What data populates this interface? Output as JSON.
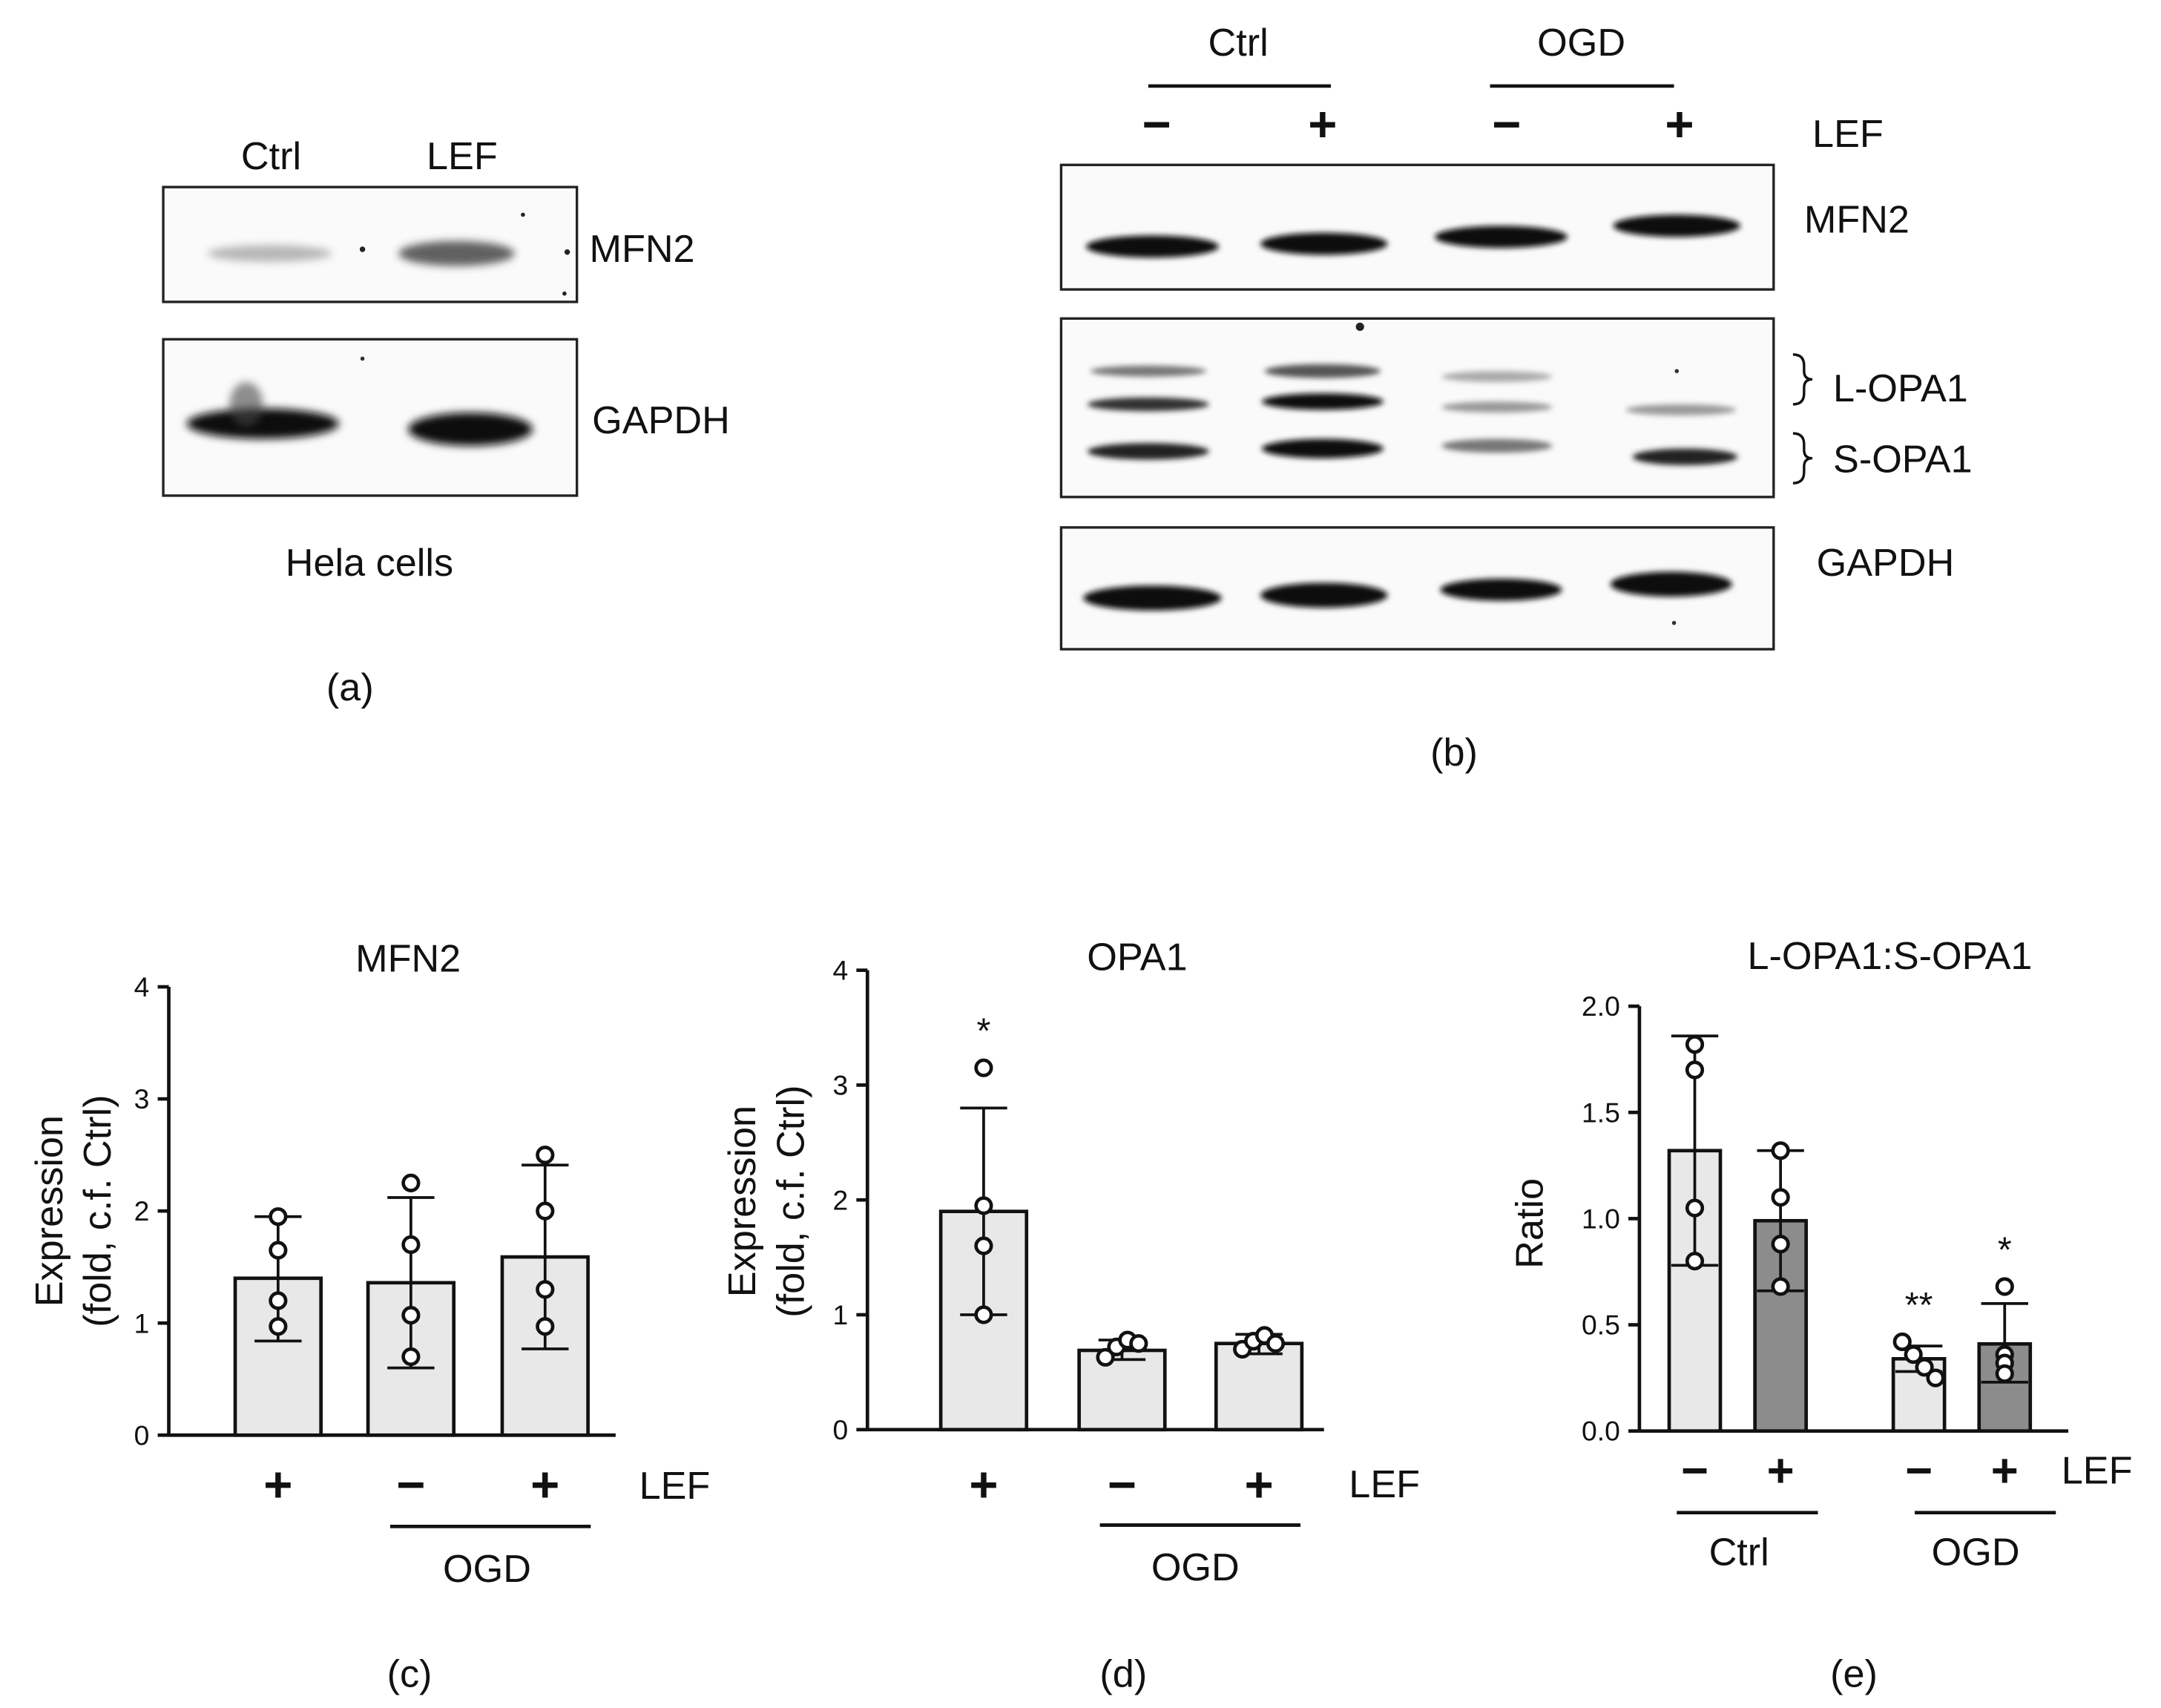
{
  "panel_a": {
    "lanes": [
      "Ctrl",
      "LEF"
    ],
    "blots": [
      "MFN2",
      "GAPDH"
    ],
    "caption": "Hela cells",
    "label": "(a)"
  },
  "panel_b": {
    "groups": [
      "Ctrl",
      "OGD"
    ],
    "treatment": [
      "−",
      "+",
      "−",
      "+"
    ],
    "treatment_name": "LEF",
    "blots": [
      "MFN2",
      "L-OPA1",
      "S-OPA1",
      "GAPDH"
    ],
    "label": "(b)"
  },
  "chart_data": [
    {
      "type": "bar",
      "title": "MFN2",
      "ylabel": "Expression (fold, c.f. Ctrl)",
      "ylabel_lines": [
        "Expression",
        "(fold, c.f. Ctrl)"
      ],
      "ylim": [
        0,
        4
      ],
      "yticks": [
        "0",
        "1",
        "2",
        "3",
        "4"
      ],
      "categories": [
        "+",
        "−",
        "+"
      ],
      "treatment_name": "LEF",
      "group_label": "OGD",
      "values": [
        1.4,
        1.36,
        1.59
      ],
      "error": [
        [
          0.84,
          1.95
        ],
        [
          0.6,
          2.12
        ],
        [
          0.77,
          2.41
        ]
      ],
      "points": [
        [
          1.95,
          1.65,
          1.2,
          0.97
        ],
        [
          2.25,
          1.7,
          1.07,
          0.7
        ],
        [
          2.5,
          2.0,
          1.3,
          0.97
        ]
      ],
      "significance": [
        "",
        "",
        ""
      ],
      "label": "(c)",
      "colors": [
        "#e8e8e8",
        "#e8e8e8",
        "#e8e8e8"
      ]
    },
    {
      "type": "bar",
      "title": "OPA1",
      "ylabel": "Expression (fold, c.f. Ctrl)",
      "ylabel_lines": [
        "Expression",
        "(fold, c.f. Ctrl)"
      ],
      "ylim": [
        0,
        4
      ],
      "yticks": [
        "0",
        "1",
        "2",
        "3",
        "4"
      ],
      "categories": [
        "+",
        "−",
        "+"
      ],
      "treatment_name": "LEF",
      "group_label": "OGD",
      "values": [
        1.9,
        0.69,
        0.75
      ],
      "error": [
        [
          1.0,
          2.8
        ],
        [
          0.61,
          0.78
        ],
        [
          0.66,
          0.83
        ]
      ],
      "points": [
        [
          3.15,
          1.95,
          1.6,
          1.0
        ],
        [
          0.63,
          0.72,
          0.78,
          0.75
        ],
        [
          0.7,
          0.77,
          0.82,
          0.75
        ]
      ],
      "significance": [
        "*",
        "",
        ""
      ],
      "label": "(d)",
      "colors": [
        "#e8e8e8",
        "#e8e8e8",
        "#e8e8e8"
      ]
    },
    {
      "type": "bar",
      "title": "L-OPA1:S-OPA1",
      "ylabel": "Ratio",
      "ylim": [
        0,
        2.0
      ],
      "yticks": [
        "0.0",
        "0.5",
        "1.0",
        "1.5",
        "2.0"
      ],
      "categories": [
        "−",
        "+",
        "−",
        "+"
      ],
      "treatment_name": "LEF",
      "groups": [
        "Ctrl",
        "OGD"
      ],
      "values": [
        1.32,
        0.99,
        0.34,
        0.41
      ],
      "error": [
        [
          0.78,
          1.86
        ],
        [
          0.66,
          1.32
        ],
        [
          0.28,
          0.4
        ],
        [
          0.23,
          0.6
        ]
      ],
      "points": [
        [
          1.82,
          1.7,
          1.05,
          0.8
        ],
        [
          1.32,
          1.1,
          0.88,
          0.68
        ],
        [
          0.42,
          0.36,
          0.3,
          0.25
        ],
        [
          0.68,
          0.36,
          0.32,
          0.27
        ]
      ],
      "significance": [
        "",
        "",
        "**",
        "*"
      ],
      "label": "(e)",
      "colors": [
        "#e8e8e8",
        "#8c8c8c",
        "#e8e8e8",
        "#8c8c8c"
      ]
    }
  ]
}
